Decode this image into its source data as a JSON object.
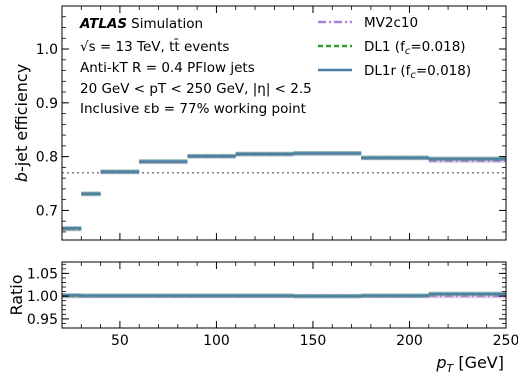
{
  "chart_data": [
    {
      "type": "line",
      "panel": "main",
      "ylabel": "b-jet efficiency",
      "xlim": [
        20,
        250
      ],
      "ylim": [
        0.645,
        1.08
      ],
      "yticks": [
        0.7,
        0.8,
        0.9,
        1.0
      ],
      "yticklabels": [
        "0.7",
        "0.8",
        "0.9",
        "1.0"
      ],
      "legend": "top-right",
      "reference_line": {
        "y": 0.77,
        "style": "dotted",
        "color": "#808080"
      },
      "annotations": [
        {
          "bold": "ATLAS",
          "text": "Simulation"
        },
        {
          "text": "√s = 13 TeV, tt̄ events"
        },
        {
          "text": "Anti-kT R = 0.4 PFlow jets"
        },
        {
          "text": "20 GeV < pT < 250 GeV, |η| < 2.5"
        },
        {
          "text": "Inclusive εb = 77% working point"
        }
      ],
      "bin_edges": [
        20,
        30,
        40,
        60,
        85,
        110,
        140,
        175,
        210,
        250
      ],
      "series": [
        {
          "name": "MV2c10",
          "label_main": "MV2c10",
          "label_sub": "",
          "color": "#b07fcf",
          "dash": "8,3,2,3",
          "values": [
            0.665,
            0.73,
            0.771,
            0.79,
            0.8,
            0.804,
            0.806,
            0.797,
            0.792
          ]
        },
        {
          "name": "DL1 (fc=0.018)",
          "label_main": "DL1 (f",
          "label_sub": "c",
          "label_end": "=0.018)",
          "color": "#3a9a3a",
          "dash": "5,3",
          "values": [
            0.666,
            0.731,
            0.772,
            0.791,
            0.801,
            0.805,
            0.806,
            0.798,
            0.796
          ]
        },
        {
          "name": "DL1r (fc=0.018)",
          "label_main": "DL1r (f",
          "label_sub": "c",
          "label_end": "=0.018)",
          "color": "#4a7fa8",
          "dash": "",
          "values": [
            0.667,
            0.731,
            0.772,
            0.791,
            0.801,
            0.805,
            0.806,
            0.798,
            0.796
          ]
        }
      ]
    },
    {
      "type": "line",
      "panel": "ratio",
      "ylabel": "Ratio",
      "xlabel": "pT [GeV]",
      "xlim": [
        20,
        250
      ],
      "ylim": [
        0.93,
        1.075
      ],
      "yticks": [
        0.95,
        1.0,
        1.05
      ],
      "yticklabels": [
        "0.95",
        "1.00",
        "1.05"
      ],
      "xticks": [
        50,
        100,
        150,
        200,
        250
      ],
      "xticklabels": [
        "50",
        "100",
        "150",
        "200",
        "250"
      ],
      "bin_edges": [
        20,
        30,
        40,
        60,
        85,
        110,
        140,
        175,
        210,
        250
      ],
      "series": [
        {
          "name": "MV2c10",
          "color": "#b07fcf",
          "dash": "8,3,2,3",
          "values": [
            1.0,
            1.0,
            1.0,
            1.0,
            1.0,
            1.0,
            1.0,
            1.0,
            1.0
          ]
        },
        {
          "name": "DL1 (fc=0.018)",
          "color": "#3a9a3a",
          "dash": "5,3",
          "values": [
            1.001,
            1.001,
            1.001,
            1.001,
            1.001,
            1.001,
            1.0,
            1.001,
            1.005
          ]
        },
        {
          "name": "DL1r (fc=0.018)",
          "color": "#4a7fa8",
          "dash": "",
          "values": [
            1.002,
            1.001,
            1.001,
            1.001,
            1.001,
            1.001,
            1.0,
            1.001,
            1.005
          ]
        }
      ]
    }
  ]
}
